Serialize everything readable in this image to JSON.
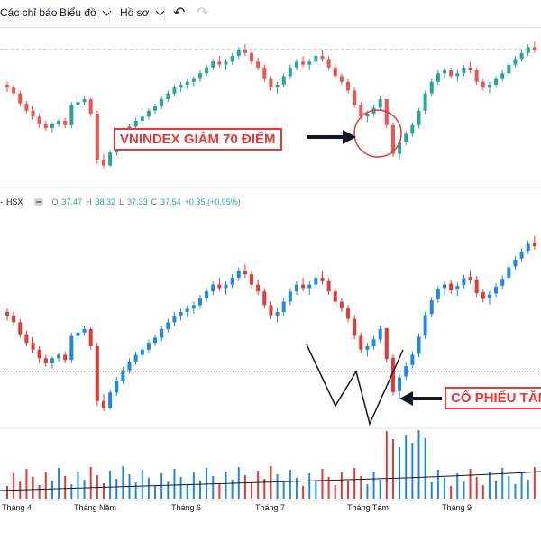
{
  "toolbar": {
    "indicators_label": "Các chỉ báo",
    "chart_label": "Biểu đồ",
    "profile_label": "Hồ sơ"
  },
  "legend": {
    "symbol": "HSX",
    "o_key": "O",
    "o_val": "37.47",
    "h_key": "H",
    "h_val": "38.32",
    "l_key": "L",
    "l_val": "37.33",
    "c_key": "C",
    "c_val": "37.54",
    "change": "+0.35 (+0.95%)"
  },
  "annotations": {
    "index_drop": "VNINDEX GIẢM 70 ĐIỂM",
    "stock_rise": "CỔ PHIẾU TĂNG"
  },
  "colors": {
    "up": "#1e88e5",
    "down": "#e53935",
    "up_index": "#26a69a",
    "down_index": "#ef5350",
    "accent": "#e53935"
  },
  "chart_data": [
    {
      "type": "candlestick",
      "name": "VNINDEX",
      "x": [
        "Tháng 4",
        "Tháng Năm",
        "Tháng 6",
        "Tháng 7",
        "Tháng Tám",
        "Tháng 9"
      ],
      "values": [
        [
          60,
          62,
          55,
          58
        ],
        [
          58,
          60,
          52,
          54
        ],
        [
          54,
          56,
          45,
          47
        ],
        [
          47,
          49,
          40,
          42
        ],
        [
          42,
          45,
          36,
          38
        ],
        [
          38,
          40,
          30,
          33
        ],
        [
          33,
          35,
          28,
          30
        ],
        [
          30,
          34,
          27,
          33
        ],
        [
          33,
          36,
          31,
          35
        ],
        [
          35,
          37,
          30,
          32
        ],
        [
          32,
          48,
          30,
          46
        ],
        [
          46,
          50,
          44,
          48
        ],
        [
          48,
          52,
          46,
          50
        ],
        [
          50,
          51,
          38,
          40
        ],
        [
          40,
          42,
          5,
          8
        ],
        [
          8,
          12,
          2,
          4
        ],
        [
          4,
          15,
          3,
          13
        ],
        [
          13,
          22,
          11,
          20
        ],
        [
          20,
          28,
          18,
          26
        ],
        [
          26,
          33,
          24,
          31
        ],
        [
          31,
          37,
          29,
          35
        ],
        [
          35,
          40,
          33,
          38
        ],
        [
          38,
          44,
          36,
          42
        ],
        [
          42,
          47,
          40,
          45
        ],
        [
          45,
          52,
          43,
          50
        ],
        [
          50,
          56,
          48,
          54
        ],
        [
          54,
          60,
          52,
          58
        ],
        [
          58,
          62,
          55,
          60
        ],
        [
          60,
          64,
          57,
          62
        ],
        [
          62,
          66,
          59,
          64
        ],
        [
          64,
          70,
          62,
          68
        ],
        [
          68,
          74,
          66,
          72
        ],
        [
          72,
          78,
          70,
          76
        ],
        [
          76,
          80,
          72,
          74
        ],
        [
          74,
          78,
          70,
          76
        ],
        [
          76,
          82,
          74,
          80
        ],
        [
          80,
          86,
          78,
          84
        ],
        [
          84,
          88,
          80,
          82
        ],
        [
          82,
          84,
          74,
          76
        ],
        [
          76,
          79,
          70,
          72
        ],
        [
          72,
          74,
          62,
          64
        ],
        [
          64,
          66,
          56,
          58
        ],
        [
          58,
          62,
          54,
          60
        ],
        [
          60,
          68,
          58,
          66
        ],
        [
          66,
          74,
          64,
          72
        ],
        [
          72,
          78,
          70,
          76
        ],
        [
          76,
          80,
          72,
          74
        ],
        [
          74,
          78,
          70,
          76
        ],
        [
          76,
          82,
          74,
          80
        ],
        [
          80,
          84,
          76,
          78
        ],
        [
          78,
          80,
          70,
          72
        ],
        [
          72,
          74,
          64,
          66
        ],
        [
          66,
          68,
          60,
          62
        ],
        [
          62,
          64,
          54,
          56
        ],
        [
          56,
          58,
          44,
          46
        ],
        [
          46,
          48,
          36,
          38
        ],
        [
          38,
          42,
          34,
          40
        ],
        [
          40,
          46,
          38,
          44
        ],
        [
          44,
          52,
          42,
          50
        ],
        [
          50,
          48,
          30,
          32
        ],
        [
          32,
          34,
          10,
          12
        ],
        [
          12,
          22,
          8,
          20
        ],
        [
          20,
          28,
          18,
          26
        ],
        [
          26,
          34,
          24,
          32
        ],
        [
          32,
          44,
          30,
          42
        ],
        [
          42,
          56,
          40,
          54
        ],
        [
          54,
          64,
          52,
          62
        ],
        [
          62,
          70,
          60,
          68
        ],
        [
          68,
          72,
          64,
          70
        ],
        [
          70,
          72,
          64,
          66
        ],
        [
          66,
          70,
          62,
          68
        ],
        [
          68,
          74,
          66,
          72
        ],
        [
          72,
          76,
          68,
          70
        ],
        [
          70,
          72,
          60,
          62
        ],
        [
          62,
          64,
          56,
          58
        ],
        [
          58,
          62,
          54,
          60
        ],
        [
          60,
          66,
          58,
          64
        ],
        [
          64,
          70,
          62,
          68
        ],
        [
          68,
          76,
          66,
          74
        ],
        [
          74,
          80,
          72,
          78
        ],
        [
          78,
          84,
          76,
          82
        ],
        [
          82,
          88,
          80,
          86
        ],
        [
          86,
          90,
          82,
          84
        ]
      ]
    },
    {
      "type": "candlestick",
      "name": "HSX",
      "x": [
        "Tháng 4",
        "Tháng Năm",
        "Tháng 6",
        "Tháng 7",
        "Tháng Tám",
        "Tháng 9"
      ],
      "last": {
        "open": 37.47,
        "high": 38.32,
        "low": 37.33,
        "close": 37.54,
        "change": 0.35,
        "change_pct": 0.95
      }
    },
    {
      "type": "bar",
      "name": "volume"
    }
  ]
}
